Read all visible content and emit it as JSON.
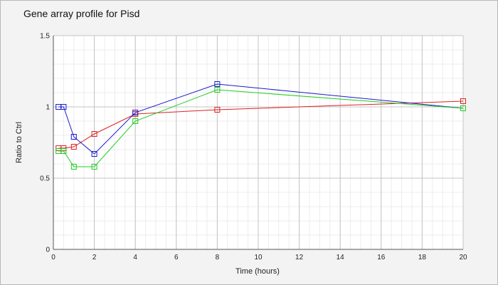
{
  "chart_data": {
    "type": "line",
    "title": "Gene array profile for Pisd",
    "xlabel": "Time (hours)",
    "ylabel": "Ratio to Ctrl",
    "xlim": [
      0,
      20
    ],
    "ylim": [
      0,
      1.5
    ],
    "xticks": [
      "0",
      "2",
      "4",
      "6",
      "8",
      "10",
      "12",
      "14",
      "16",
      "18",
      "20"
    ],
    "yticks": [
      "0",
      "0.5",
      "1",
      "1.5"
    ],
    "grid": true,
    "legend": "none",
    "series": [
      {
        "color": "#dd2222",
        "x": [
          0.25,
          0.5,
          1,
          2,
          4,
          8,
          20
        ],
        "y": [
          0.71,
          0.71,
          0.72,
          0.81,
          0.95,
          0.98,
          1.04
        ]
      },
      {
        "color": "#1a1acc",
        "x": [
          0.25,
          0.5,
          1,
          2,
          4,
          8,
          20
        ],
        "y": [
          1.0,
          1.0,
          0.79,
          0.67,
          0.96,
          1.16,
          0.99
        ]
      },
      {
        "color": "#22cc22",
        "x": [
          0.25,
          0.5,
          1,
          2,
          4,
          8,
          20
        ],
        "y": [
          0.69,
          0.69,
          0.58,
          0.58,
          0.9,
          1.12,
          0.99
        ]
      }
    ]
  }
}
